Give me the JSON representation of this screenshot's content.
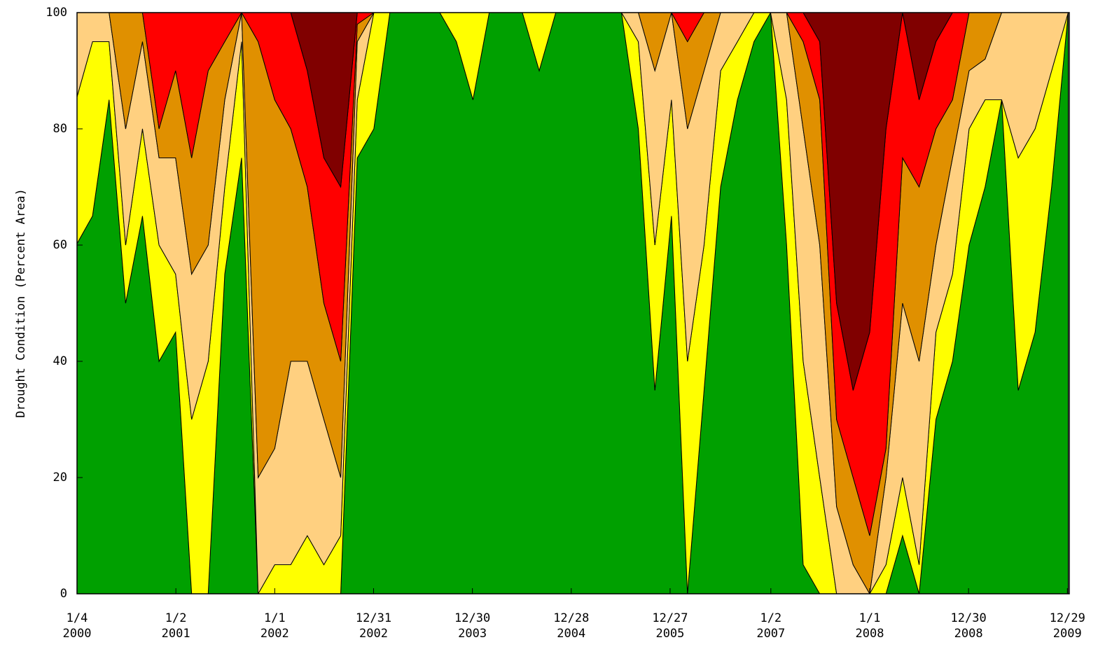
{
  "chart_data": {
    "type": "stacked_area",
    "y_label": "Drought Condition (Percent Area)",
    "x": [
      "2000-01",
      "2000-03",
      "2000-05",
      "2000-07",
      "2000-09",
      "2000-11",
      "2001-01",
      "2001-03",
      "2001-05",
      "2001-07",
      "2001-09",
      "2001-11",
      "2002-01",
      "2002-03",
      "2002-05",
      "2002-07",
      "2002-09",
      "2002-11",
      "2003-01",
      "2003-03",
      "2003-05",
      "2003-07",
      "2003-09",
      "2003-11",
      "2004-01",
      "2004-03",
      "2004-05",
      "2004-07",
      "2004-09",
      "2004-11",
      "2005-01",
      "2005-03",
      "2005-05",
      "2005-07",
      "2005-09",
      "2005-11",
      "2006-01",
      "2006-03",
      "2006-05",
      "2006-07",
      "2006-09",
      "2006-11",
      "2007-01",
      "2007-03",
      "2007-05",
      "2007-07",
      "2007-09",
      "2007-11",
      "2008-01",
      "2008-03",
      "2008-05",
      "2008-07",
      "2008-09",
      "2008-11",
      "2009-01",
      "2009-03",
      "2009-05",
      "2009-07",
      "2009-09",
      "2009-11",
      "2010-01"
    ],
    "series": [
      {
        "color": "#00a000",
        "values": [
          60,
          65,
          85,
          50,
          65,
          40,
          45,
          0,
          0,
          55,
          75,
          0,
          0,
          0,
          0,
          0,
          0,
          75,
          80,
          100,
          100,
          100,
          100,
          95,
          85,
          100,
          100,
          100,
          90,
          100,
          100,
          100,
          100,
          100,
          80,
          35,
          65,
          0,
          35,
          70,
          85,
          95,
          100,
          60,
          5,
          0,
          0,
          0,
          0,
          0,
          10,
          0,
          30,
          40,
          60,
          70,
          85,
          35,
          45,
          70,
          100
        ]
      },
      {
        "color": "#ffff00",
        "values": [
          25,
          30,
          10,
          10,
          15,
          20,
          10,
          30,
          40,
          15,
          20,
          0,
          5,
          5,
          10,
          5,
          10,
          10,
          20,
          0,
          0,
          0,
          0,
          5,
          15,
          0,
          0,
          0,
          10,
          0,
          0,
          0,
          0,
          0,
          15,
          25,
          20,
          40,
          25,
          20,
          10,
          5,
          0,
          25,
          35,
          20,
          0,
          0,
          0,
          5,
          10,
          5,
          15,
          15,
          20,
          15,
          0,
          40,
          35,
          20,
          0
        ]
      },
      {
        "color": "#ffd080",
        "values": [
          15,
          5,
          5,
          20,
          15,
          15,
          20,
          25,
          20,
          15,
          5,
          20,
          20,
          35,
          30,
          25,
          10,
          10,
          0,
          0,
          0,
          0,
          0,
          0,
          0,
          0,
          0,
          0,
          0,
          0,
          0,
          0,
          0,
          0,
          5,
          30,
          15,
          40,
          30,
          10,
          5,
          0,
          0,
          15,
          40,
          40,
          15,
          5,
          0,
          15,
          30,
          35,
          15,
          20,
          10,
          7,
          15,
          25,
          20,
          10,
          0
        ]
      },
      {
        "color": "#e09000",
        "values": [
          0,
          0,
          0,
          20,
          5,
          5,
          15,
          20,
          30,
          10,
          0,
          75,
          60,
          40,
          30,
          20,
          20,
          3,
          0,
          0,
          0,
          0,
          0,
          0,
          0,
          0,
          0,
          0,
          0,
          0,
          0,
          0,
          0,
          0,
          0,
          10,
          0,
          15,
          10,
          0,
          0,
          0,
          0,
          0,
          15,
          25,
          15,
          15,
          10,
          5,
          25,
          30,
          20,
          10,
          10,
          8,
          0,
          0,
          0,
          0,
          0
        ]
      },
      {
        "color": "#ff0000",
        "values": [
          0,
          0,
          0,
          0,
          0,
          20,
          10,
          25,
          10,
          5,
          0,
          5,
          15,
          20,
          20,
          25,
          30,
          2,
          0,
          0,
          0,
          0,
          0,
          0,
          0,
          0,
          0,
          0,
          0,
          0,
          0,
          0,
          0,
          0,
          0,
          0,
          0,
          5,
          0,
          0,
          0,
          0,
          0,
          0,
          5,
          10,
          20,
          15,
          35,
          55,
          25,
          15,
          15,
          15,
          0,
          0,
          0,
          0,
          0,
          0,
          0
        ]
      },
      {
        "color": "#800000",
        "values": [
          0,
          0,
          0,
          0,
          0,
          0,
          0,
          0,
          0,
          0,
          0,
          0,
          0,
          0,
          10,
          25,
          30,
          0,
          0,
          0,
          0,
          0,
          0,
          0,
          0,
          0,
          0,
          0,
          0,
          0,
          0,
          0,
          0,
          0,
          0,
          0,
          0,
          0,
          0,
          0,
          0,
          0,
          0,
          0,
          0,
          5,
          50,
          65,
          55,
          20,
          0,
          15,
          5,
          0,
          0,
          0,
          0,
          0,
          0,
          0,
          0
        ]
      }
    ],
    "xlim": [
      "2000-01-04",
      "2010-01-05"
    ],
    "xticks": [
      {
        "value": "2000-01-04",
        "label": "1/4\n2000"
      },
      {
        "value": "2001-01-02",
        "label": "1/2\n2001"
      },
      {
        "value": "2002-01-01",
        "label": "1/1\n2002"
      },
      {
        "value": "2002-12-31",
        "label": "12/31\n2002"
      },
      {
        "value": "2003-12-30",
        "label": "12/30\n2003"
      },
      {
        "value": "2004-12-28",
        "label": "12/28\n2004"
      },
      {
        "value": "2005-12-27",
        "label": "12/27\n2005"
      },
      {
        "value": "2007-01-02",
        "label": "1/2\n2007"
      },
      {
        "value": "2008-01-01",
        "label": "1/1\n2008"
      },
      {
        "value": "2008-12-30",
        "label": "12/30\n2008"
      },
      {
        "value": "2009-12-29",
        "label": "12/29\n2009"
      }
    ],
    "ylim": [
      0,
      100
    ],
    "yticks": [
      0,
      20,
      40,
      60,
      80,
      100
    ]
  }
}
